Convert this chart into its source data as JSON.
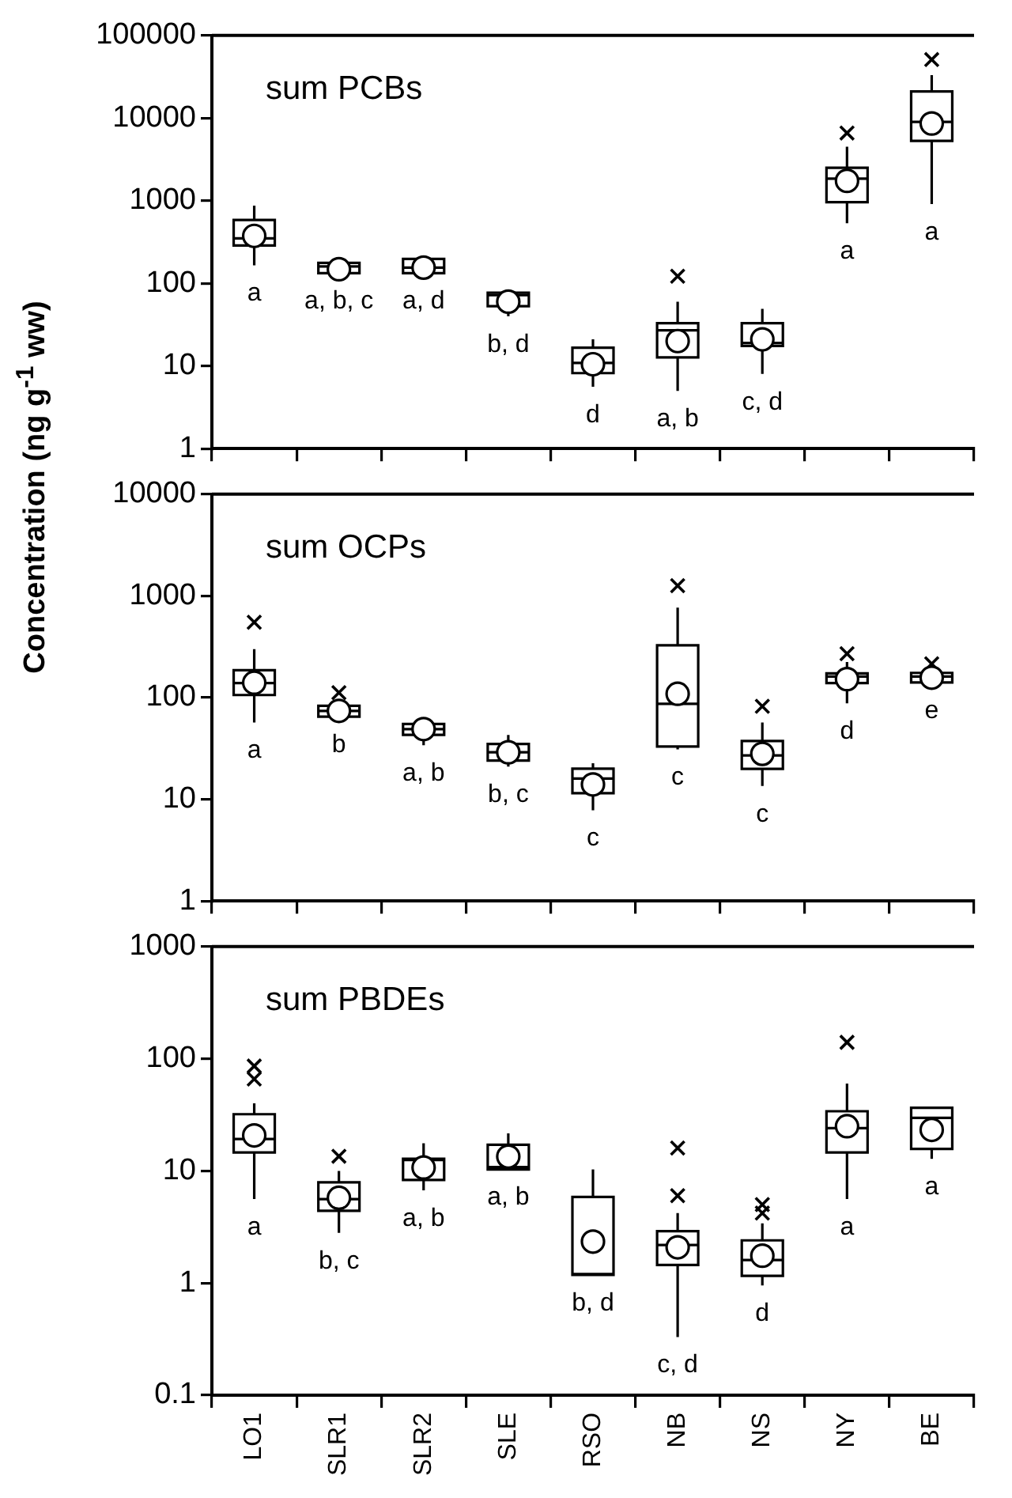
{
  "chart_data": [
    {
      "type": "box",
      "title": "sum PCBs",
      "categories": [
        null,
        null,
        null,
        null,
        null,
        null,
        null,
        null,
        null
      ],
      "log": true,
      "ylim": [
        1,
        100000
      ],
      "yticks": [
        1,
        10,
        100,
        1000,
        10000,
        100000
      ],
      "grid": false,
      "legend": false,
      "tick_labels": "y",
      "boxes": [
        {
          "low": 165,
          "q1": 287,
          "median": 350,
          "q3": 585,
          "high": 870,
          "mean": 375
        },
        {
          "low": 133,
          "q1": 133,
          "median": 160,
          "q3": 177,
          "high": 177,
          "mean": 148
        },
        {
          "low": 133,
          "q1": 133,
          "median": 155,
          "q3": 197,
          "high": 197,
          "mean": 155
        },
        {
          "low": 40,
          "q1": 53,
          "median": 72,
          "q3": 77,
          "high": 77,
          "mean": 60
        },
        {
          "low": 5.6,
          "q1": 8.2,
          "median": 10.9,
          "q3": 16.6,
          "high": 21,
          "mean": 10.5
        },
        {
          "low": 5,
          "q1": 12.7,
          "median": 27,
          "q3": 33,
          "high": 60,
          "mean": 20,
          "outliers": [
            122
          ]
        },
        {
          "low": 8,
          "q1": 17.5,
          "median": 19,
          "q3": 33,
          "high": 49,
          "mean": 21
        },
        {
          "low": 535,
          "q1": 960,
          "median": 1850,
          "q3": 2500,
          "high": 4500,
          "mean": 1740,
          "outliers": [
            6600
          ]
        },
        {
          "low": 910,
          "q1": 5300,
          "median": 9000,
          "q3": 21000,
          "high": 33000,
          "mean": 8600,
          "outliers": [
            51000
          ]
        }
      ],
      "annotations": [
        "a",
        "a, b, c",
        "a, d",
        "b, d",
        "d",
        "a, b",
        "c, d",
        "a",
        "a"
      ]
    },
    {
      "type": "box",
      "title": "sum OCPs",
      "ylabel": "Concentration (ng g$^{-1}$ ww)",
      "categories": [
        null,
        null,
        null,
        null,
        null,
        null,
        null,
        null,
        null
      ],
      "log": true,
      "ylim": [
        1,
        10000
      ],
      "yticks": [
        1,
        10,
        100,
        1000,
        10000
      ],
      "grid": false,
      "legend": false,
      "tick_labels": "y",
      "boxes": [
        {
          "low": 57,
          "q1": 106,
          "median": 139,
          "q3": 186,
          "high": 300,
          "mean": 140,
          "outliers": [
            550
          ]
        },
        {
          "low": 65,
          "q1": 65,
          "median": 74,
          "q3": 83,
          "high": 83,
          "mean": 74,
          "outliers": [
            112
          ]
        },
        {
          "low": 34,
          "q1": 43,
          "median": 49,
          "q3": 55,
          "high": 57,
          "mean": 49
        },
        {
          "low": 21,
          "q1": 24,
          "median": 29,
          "q3": 35,
          "high": 43,
          "mean": 29
        },
        {
          "low": 7.8,
          "q1": 11.5,
          "median": 16,
          "q3": 20,
          "high": 22.6,
          "mean": 14
        },
        {
          "low": 31,
          "q1": 33,
          "median": 87,
          "q3": 327,
          "high": 765,
          "mean": 109,
          "outliers": [
            1260
          ]
        },
        {
          "low": 13.5,
          "q1": 19.9,
          "median": 27,
          "q3": 37.5,
          "high": 57,
          "mean": 28,
          "outliers": [
            82
          ]
        },
        {
          "low": 88,
          "q1": 139,
          "median": 161,
          "q3": 173,
          "high": 224,
          "mean": 152,
          "outliers": [
            270
          ]
        },
        {
          "low": 141,
          "q1": 141,
          "median": 161,
          "q3": 175,
          "high": 195,
          "mean": 157,
          "outliers": [
            215
          ]
        }
      ],
      "annotations": [
        "a",
        "b",
        "a, b",
        "b, c",
        "c",
        "c",
        "c",
        "d",
        "e"
      ]
    },
    {
      "type": "box",
      "title": "sum PBDEs",
      "categories": [
        "LO1",
        "SLR1",
        "SLR2",
        "SLE",
        "RSO",
        "NB",
        "NS",
        "NY",
        "BE"
      ],
      "log": true,
      "ylim": [
        0.1,
        1000
      ],
      "yticks": [
        0.1,
        1,
        10,
        100,
        1000
      ],
      "grid": false,
      "legend": false,
      "boxes": [
        {
          "low": 5.6,
          "q1": 14.6,
          "median": 19.2,
          "q3": 32,
          "high": 40,
          "mean": 20.7,
          "outliers": [
            66,
            86
          ]
        },
        {
          "low": 2.8,
          "q1": 4.4,
          "median": 5.6,
          "q3": 7.9,
          "high": 10,
          "mean": 5.75,
          "outliers": [
            13.5
          ]
        },
        {
          "low": 6.7,
          "q1": 8.3,
          "median": 12.5,
          "q3": 12.8,
          "high": 17.6,
          "mean": 10.7
        },
        {
          "low": 10.3,
          "q1": 10.3,
          "median": 10.8,
          "q3": 17.1,
          "high": 21.6,
          "mean": 13.4
        },
        {
          "low": 1.18,
          "q1": 1.18,
          "median": 1.2,
          "q3": 5.85,
          "high": 10.3,
          "mean": 2.34
        },
        {
          "low": 0.33,
          "q1": 1.45,
          "median": 2.18,
          "q3": 2.9,
          "high": 4.2,
          "mean": 2.08,
          "outliers": [
            6,
            16
          ]
        },
        {
          "low": 0.95,
          "q1": 1.16,
          "median": 1.6,
          "q3": 2.4,
          "high": 3.4,
          "mean": 1.75,
          "outliers": [
            4.2,
            5
          ]
        },
        {
          "low": 5.6,
          "q1": 14.6,
          "median": 24,
          "q3": 34,
          "high": 60,
          "mean": 25,
          "outliers": [
            140
          ]
        },
        {
          "low": 12.8,
          "q1": 15.7,
          "median": 29.7,
          "q3": 36.5,
          "high": 36.5,
          "mean": 23.2
        }
      ],
      "annotations": [
        "a",
        "b, c",
        "a, b",
        "a, b",
        "b, d",
        "c, d",
        "d",
        "a",
        "a"
      ]
    }
  ]
}
